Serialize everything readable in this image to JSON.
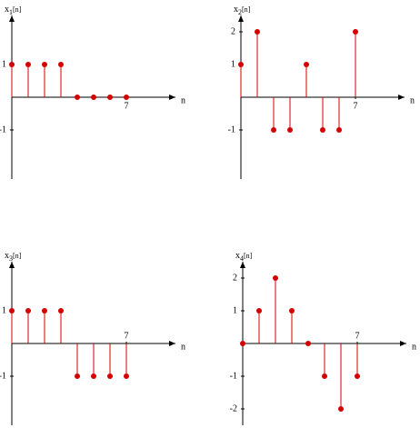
{
  "chart_data": [
    {
      "type": "stem",
      "title": [
        "x",
        "1",
        "[n]"
      ],
      "x_label": "n",
      "x": [
        0,
        1,
        2,
        3,
        4,
        5,
        6,
        7
      ],
      "values": [
        1,
        1,
        1,
        1,
        0,
        0,
        0,
        0
      ],
      "xlim": [
        0,
        10
      ],
      "ylim": [
        -2.5,
        2.5
      ],
      "xticks": [
        7
      ],
      "yticks": [
        1,
        -1
      ],
      "color": "#d40000"
    },
    {
      "type": "stem",
      "title": [
        "x",
        "2",
        "[n]"
      ],
      "x_label": "n",
      "x": [
        0,
        1,
        2,
        3,
        4,
        5,
        6,
        7
      ],
      "values": [
        1,
        2,
        -1,
        -1,
        1,
        -1,
        -1,
        2
      ],
      "xlim": [
        0,
        10
      ],
      "ylim": [
        -2.5,
        2.5
      ],
      "xticks": [
        7
      ],
      "yticks": [
        2,
        1,
        -1
      ],
      "color": "#d40000"
    },
    {
      "type": "stem",
      "title": [
        "x",
        "3",
        "[n]"
      ],
      "x_label": "n",
      "x": [
        0,
        1,
        2,
        3,
        4,
        5,
        6,
        7
      ],
      "values": [
        1,
        1,
        1,
        1,
        -1,
        -1,
        -1,
        -1
      ],
      "xlim": [
        0,
        10
      ],
      "ylim": [
        -2.5,
        2.5
      ],
      "xticks": [
        7
      ],
      "yticks": [
        1,
        -1
      ],
      "color": "#d40000"
    },
    {
      "type": "stem",
      "title": [
        "x",
        "4",
        "[n]"
      ],
      "x_label": "n",
      "x": [
        0,
        1,
        2,
        3,
        4,
        5,
        6,
        7
      ],
      "values": [
        0,
        1,
        2,
        1,
        0,
        -1,
        -2,
        -1
      ],
      "xlim": [
        0,
        10
      ],
      "ylim": [
        -2.5,
        2.5
      ],
      "xticks": [
        7
      ],
      "yticks": [
        2,
        1,
        -1,
        -2
      ],
      "color": "#d40000"
    }
  ]
}
